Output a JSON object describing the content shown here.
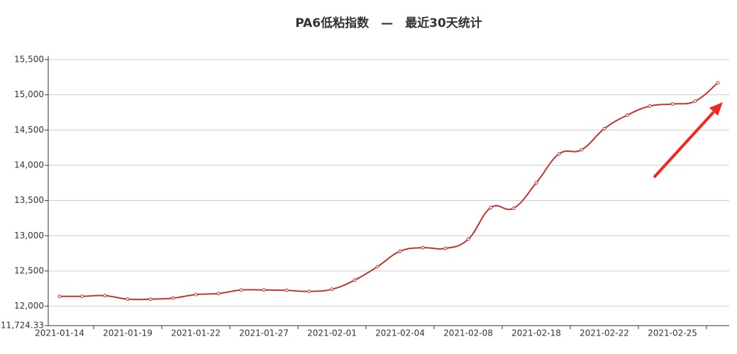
{
  "chart_data": {
    "type": "line",
    "title": "PA6低粘指数　—　最近30天统计",
    "categories": [
      "2021-01-14",
      null,
      null,
      "2021-01-19",
      null,
      null,
      "2021-01-22",
      null,
      null,
      "2021-01-27",
      null,
      null,
      "2021-02-01",
      null,
      null,
      "2021-02-04",
      null,
      null,
      "2021-02-08",
      null,
      null,
      "2021-02-18",
      null,
      null,
      "2021-02-22",
      null,
      null,
      "2021-02-25",
      null,
      null
    ],
    "series": [
      {
        "color": "#c23531",
        "values": [
          12140,
          12140,
          12150,
          12100,
          12100,
          12115,
          12165,
          12180,
          12230,
          12230,
          12225,
          12210,
          12240,
          12370,
          12560,
          12780,
          12830,
          12820,
          12950,
          13400,
          13390,
          13750,
          14160,
          14220,
          14520,
          14710,
          14840,
          14870,
          14910,
          15170
        ]
      }
    ],
    "ylim": [
      11724.33,
      15500
    ],
    "yticks": [
      {
        "value": 11724.33,
        "label": "11,724.33"
      },
      {
        "value": 12000,
        "label": "12,000"
      },
      {
        "value": 12500,
        "label": "12,500"
      },
      {
        "value": 13000,
        "label": "13,000"
      },
      {
        "value": 13500,
        "label": "13,500"
      },
      {
        "value": 14000,
        "label": "14,000"
      },
      {
        "value": 14500,
        "label": "14,500"
      },
      {
        "value": 15000,
        "label": "15,000"
      },
      {
        "value": 15500,
        "label": "15,500"
      }
    ],
    "grid": true
  }
}
